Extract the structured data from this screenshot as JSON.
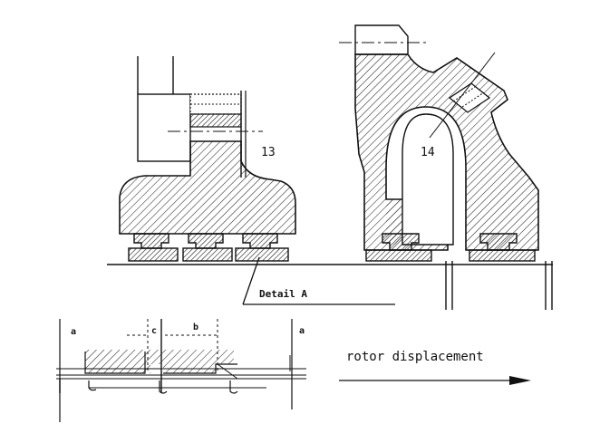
{
  "labels": {
    "part_13": "13",
    "part_14": "14",
    "detail_a": "Detail A",
    "dim_a_left": "a",
    "dim_c": "c",
    "dim_b": "b",
    "dim_a_right": "a",
    "rotor_displacement": "rotor displacement"
  },
  "colors": {
    "ink": "#111111",
    "hatch": "#2a2a2a",
    "background": "#ffffff"
  }
}
